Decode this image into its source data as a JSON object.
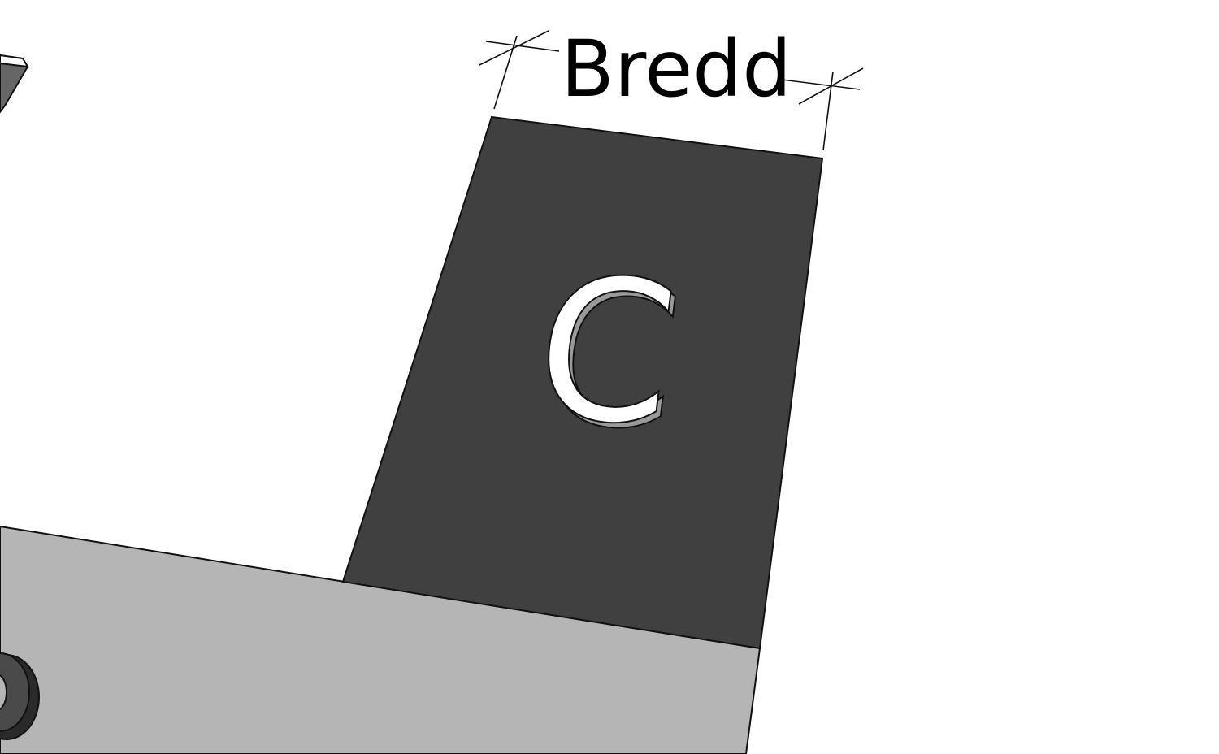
{
  "dimension": {
    "label": "Bredd"
  },
  "panel": {
    "letter": "C"
  },
  "colors": {
    "background": "#ffffff",
    "panel_dark": "#404040",
    "base_light": "#b5b5b5",
    "outline": "#111111",
    "letter_fill": "#ffffff",
    "letter_shadow": "#9a9a9a"
  }
}
